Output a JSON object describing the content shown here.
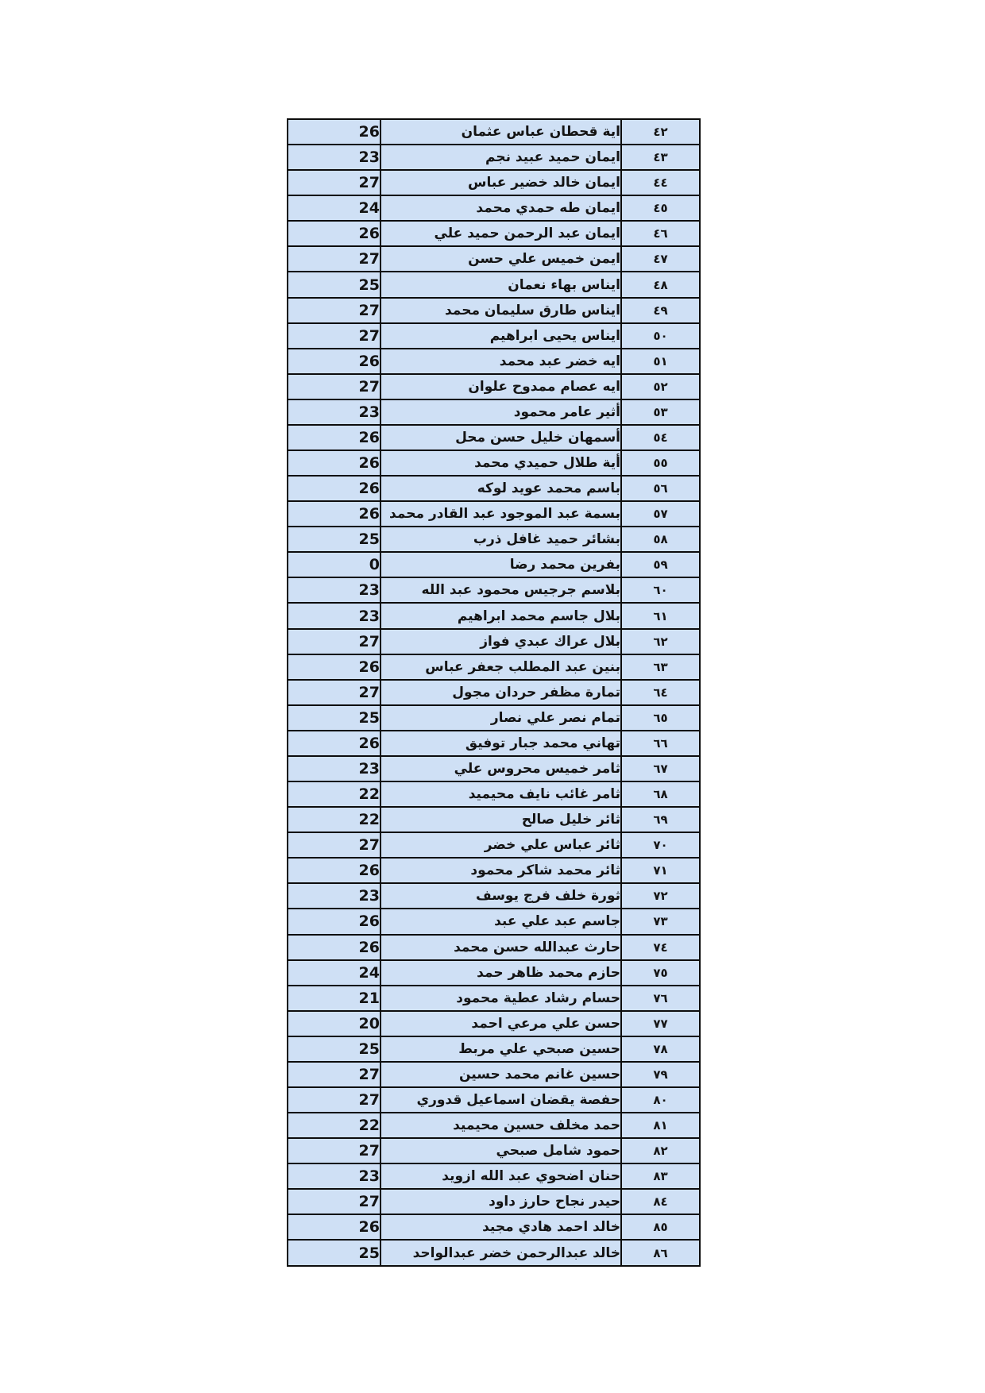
{
  "page": {
    "background_color": "#ffffff",
    "type": "student-score-table"
  },
  "table": {
    "cell_fill_color": "#cfe0f5",
    "border_color": "#0d0d0d",
    "text_color": "#141414",
    "columns": [
      "score",
      "student_name",
      "row_number_arabic"
    ],
    "visible_row_range": "42-86",
    "rows": [
      {
        "no": "٤٢",
        "name": "اية قحطان عباس عثمان",
        "score": "26"
      },
      {
        "no": "٤٣",
        "name": "ايمان حميد عبيد نجم",
        "score": "23"
      },
      {
        "no": "٤٤",
        "name": "ايمان خالد خضير عباس",
        "score": "27"
      },
      {
        "no": "٤٥",
        "name": "ايمان طه حمدي محمد",
        "score": "24"
      },
      {
        "no": "٤٦",
        "name": "ايمان عبد الرحمن حميد علي",
        "score": "26"
      },
      {
        "no": "٤٧",
        "name": "ايمن خميس علي حسن",
        "score": "27"
      },
      {
        "no": "٤٨",
        "name": "ايناس بهاء نعمان",
        "score": "25"
      },
      {
        "no": "٤٩",
        "name": "ايناس طارق سليمان محمد",
        "score": "27"
      },
      {
        "no": "٥٠",
        "name": "ايناس يحيى ابراهيم",
        "score": "27"
      },
      {
        "no": "٥١",
        "name": "ايه خضر عبد محمد",
        "score": "26"
      },
      {
        "no": "٥٢",
        "name": "ايه عصام ممدوح علوان",
        "score": "27"
      },
      {
        "no": "٥٣",
        "name": "أثير عامر محمود",
        "score": "23"
      },
      {
        "no": "٥٤",
        "name": "أسمهان خليل حسن محل",
        "score": "26"
      },
      {
        "no": "٥٥",
        "name": "أية طلال حميدي محمد",
        "score": "26"
      },
      {
        "no": "٥٦",
        "name": "باسم محمد عويد لوكه",
        "score": "26"
      },
      {
        "no": "٥٧",
        "name": "بسمة عبد الموجود عبد القادر محمد",
        "score": "26"
      },
      {
        "no": "٥٨",
        "name": "بشائر حميد غافل ذرب",
        "score": "25"
      },
      {
        "no": "٥٩",
        "name": "بفرين محمد رضا",
        "score": "0"
      },
      {
        "no": "٦٠",
        "name": "بلاسم جرجيس محمود عبد الله",
        "score": "23"
      },
      {
        "no": "٦١",
        "name": "بلال جاسم محمد ابراهيم",
        "score": "23"
      },
      {
        "no": "٦٢",
        "name": "بلال عراك عبدي فواز",
        "score": "27"
      },
      {
        "no": "٦٣",
        "name": "بنين عبد المطلب جعفر عباس",
        "score": "26"
      },
      {
        "no": "٦٤",
        "name": "تمارة مظفر حردان مجول",
        "score": "27"
      },
      {
        "no": "٦٥",
        "name": "تمام نصر علي نصار",
        "score": "25"
      },
      {
        "no": "٦٦",
        "name": "تهاني محمد جبار توفيق",
        "score": "26"
      },
      {
        "no": "٦٧",
        "name": "ثامر خميس محروس علي",
        "score": "23"
      },
      {
        "no": "٦٨",
        "name": "ثامر غائب نايف محيميد",
        "score": "22"
      },
      {
        "no": "٦٩",
        "name": "ثائر خليل صالح",
        "score": "22"
      },
      {
        "no": "٧٠",
        "name": "ثائر عباس علي خضر",
        "score": "27"
      },
      {
        "no": "٧١",
        "name": "ثائر محمد شاكر محمود",
        "score": "26"
      },
      {
        "no": "٧٢",
        "name": "ثورة خلف فرج يوسف",
        "score": "23"
      },
      {
        "no": "٧٣",
        "name": "جاسم عبد علي عبد",
        "score": "26"
      },
      {
        "no": "٧٤",
        "name": "حارث عبدالله حسن محمد",
        "score": "26"
      },
      {
        "no": "٧٥",
        "name": "حازم محمد ظاهر حمد",
        "score": "24"
      },
      {
        "no": "٧٦",
        "name": "حسام رشاد عطية محمود",
        "score": "21"
      },
      {
        "no": "٧٧",
        "name": "حسن علي مرعي احمد",
        "score": "20"
      },
      {
        "no": "٧٨",
        "name": "حسين صبحي علي مربط",
        "score": "25"
      },
      {
        "no": "٧٩",
        "name": "حسين غانم محمد حسين",
        "score": "27"
      },
      {
        "no": "٨٠",
        "name": "حفصة يقضان اسماعيل قدوري",
        "score": "27"
      },
      {
        "no": "٨١",
        "name": "حمد مخلف حسين محيميد",
        "score": "22"
      },
      {
        "no": "٨٢",
        "name": "حمود شامل صبحي",
        "score": "27"
      },
      {
        "no": "٨٣",
        "name": "حنان اضحوي عبد الله ازويد",
        "score": "23"
      },
      {
        "no": "٨٤",
        "name": "حيدر نجاح حارز داود",
        "score": "27"
      },
      {
        "no": "٨٥",
        "name": "خالد احمد هادي مجيد",
        "score": "26"
      },
      {
        "no": "٨٦",
        "name": "خالد عبدالرحمن خضر عبدالواحد",
        "score": "25"
      }
    ]
  }
}
